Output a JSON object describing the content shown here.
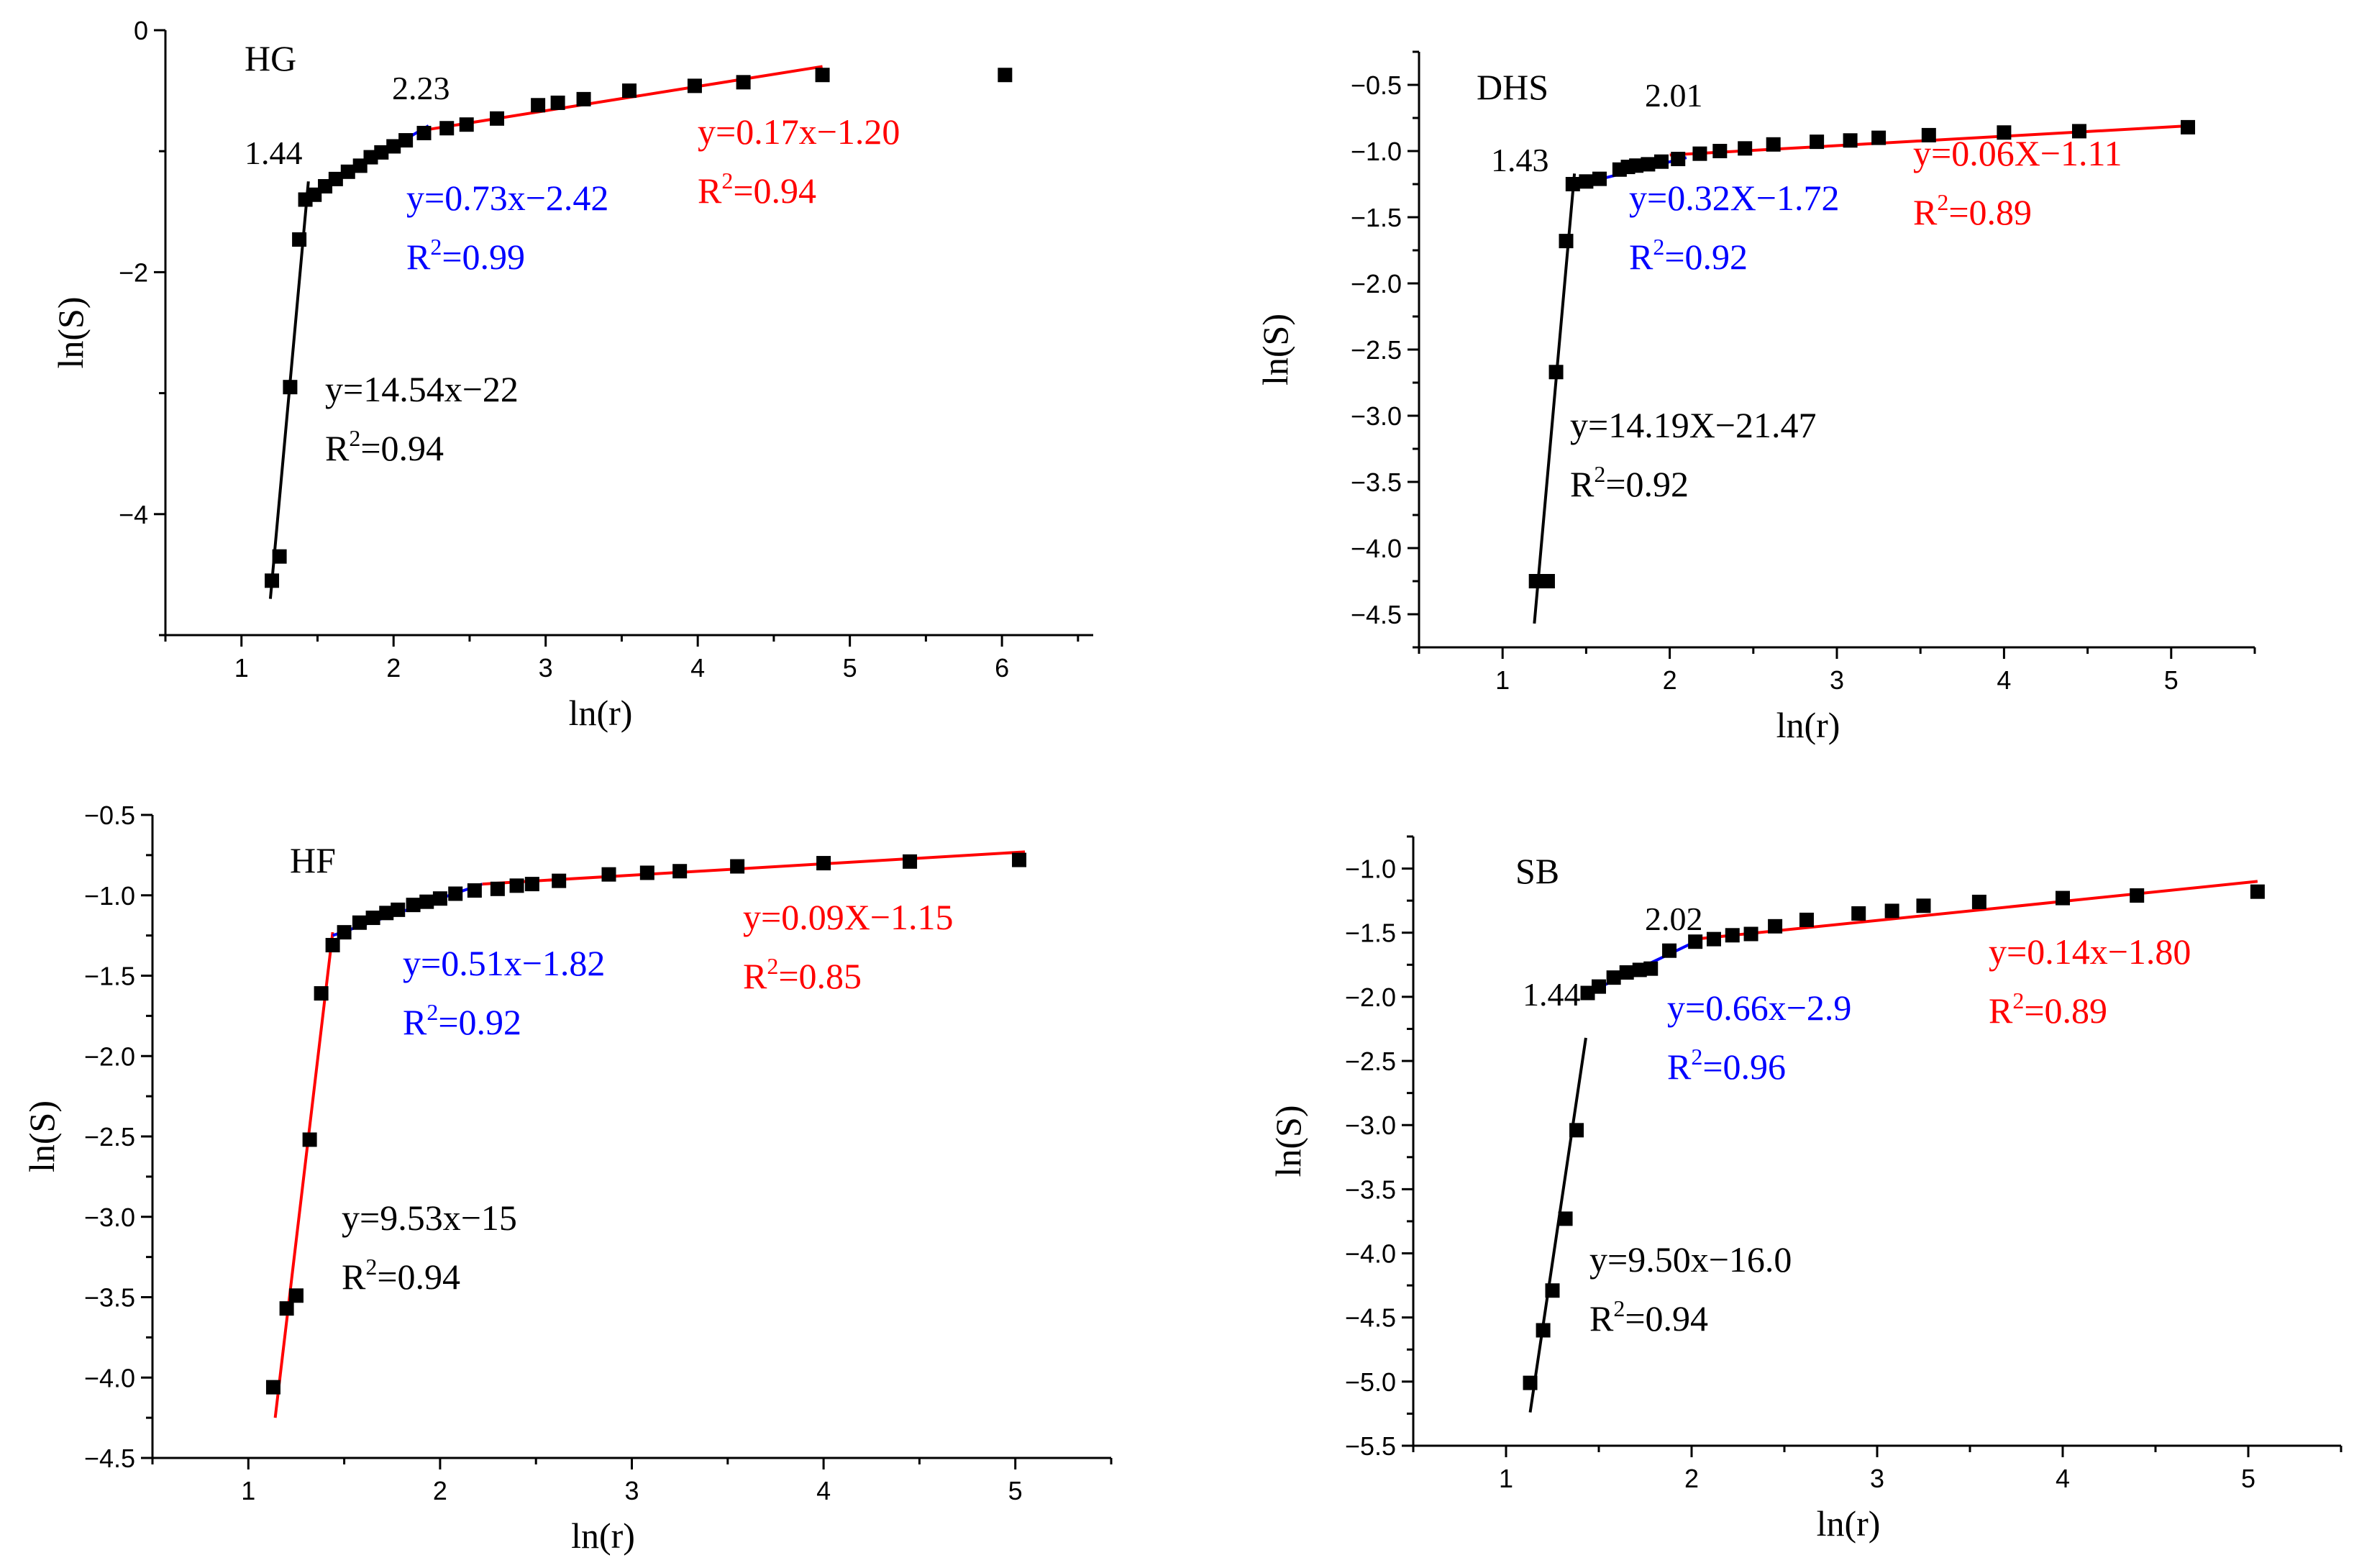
{
  "chart_data": [
    {
      "type": "scatter",
      "title": "HG",
      "xlabel": "ln(r)",
      "ylabel": "ln(S)",
      "xlim": [
        0.5,
        6.6
      ],
      "ylim": [
        -5.0,
        0.0
      ],
      "xticks": [
        1,
        2,
        3,
        4,
        5,
        6
      ],
      "yticks": [
        0,
        -2,
        -4
      ],
      "xtick_labels": [
        "1",
        "2",
        "3",
        "4",
        "5",
        "6"
      ],
      "ytick_labels": [
        "0",
        "−2",
        "−4"
      ],
      "points": {
        "x": [
          1.2,
          1.25,
          1.32,
          1.38,
          1.42,
          1.48,
          1.55,
          1.62,
          1.7,
          1.78,
          1.85,
          1.92,
          2.0,
          2.08,
          2.2,
          2.35,
          2.48,
          2.68,
          2.95,
          3.08,
          3.25,
          3.55,
          3.98,
          4.3,
          4.82,
          6.02
        ],
        "y": [
          -4.55,
          -4.35,
          -2.95,
          -1.73,
          -1.4,
          -1.36,
          -1.29,
          -1.23,
          -1.17,
          -1.12,
          -1.05,
          -1.01,
          -0.96,
          -0.91,
          -0.85,
          -0.81,
          -0.78,
          -0.73,
          -0.62,
          -0.6,
          -0.57,
          -0.5,
          -0.46,
          -0.43,
          -0.37,
          -0.37
        ]
      },
      "fits": [
        {
          "color": "#000000",
          "x": [
            1.19,
            1.44
          ],
          "y": [
            -4.7,
            -1.25
          ]
        },
        {
          "color": "#0000ff",
          "x": [
            1.44,
            2.23
          ],
          "y": [
            -1.37,
            -0.79
          ]
        },
        {
          "color": "#ff0000",
          "x": [
            2.23,
            4.82
          ],
          "y": [
            -0.82,
            -0.3
          ]
        }
      ],
      "annotations": [
        {
          "id": "black_eq",
          "color": "#000000",
          "line1": "y=14.54x−22",
          "r2": "=0.94"
        },
        {
          "id": "blue_eq",
          "color": "#0000ff",
          "line1": "y=0.73x−2.42",
          "r2": "=0.99"
        },
        {
          "id": "red_eq",
          "color": "#ff0000",
          "line1": "y=0.17x−1.20",
          "r2": "=0.94"
        }
      ],
      "breakpoints": [
        "1.44",
        "2.23"
      ]
    },
    {
      "type": "scatter",
      "title": "DHS",
      "xlabel": "ln(r)",
      "ylabel": "ln(S)",
      "xlim": [
        0.5,
        5.5
      ],
      "ylim": [
        -4.75,
        -0.25
      ],
      "xticks": [
        1,
        2,
        3,
        4,
        5
      ],
      "yticks": [
        -0.5,
        -1.0,
        -1.5,
        -2.0,
        -2.5,
        -3.0,
        -3.5,
        -4.0,
        -4.5
      ],
      "xtick_labels": [
        "1",
        "2",
        "3",
        "4",
        "5"
      ],
      "ytick_labels": [
        "−0.5",
        "−1.0",
        "−1.5",
        "−2.0",
        "−2.5",
        "−3.0",
        "−3.5",
        "−4.0",
        "−4.5"
      ],
      "points": {
        "x": [
          1.2,
          1.27,
          1.32,
          1.38,
          1.42,
          1.5,
          1.58,
          1.7,
          1.75,
          1.8,
          1.87,
          1.95,
          2.05,
          2.18,
          2.3,
          2.45,
          2.62,
          2.88,
          3.08,
          3.25,
          3.55,
          4.0,
          4.45,
          5.1
        ],
        "y": [
          -4.25,
          -4.25,
          -2.67,
          -1.68,
          -1.25,
          -1.23,
          -1.21,
          -1.14,
          -1.12,
          -1.11,
          -1.1,
          -1.08,
          -1.06,
          -1.02,
          -1.0,
          -0.98,
          -0.95,
          -0.93,
          -0.92,
          -0.9,
          -0.88,
          -0.86,
          -0.85,
          -0.82
        ]
      },
      "fits": [
        {
          "color": "#000000",
          "x": [
            1.19,
            1.43
          ],
          "y": [
            -4.57,
            -1.17
          ]
        },
        {
          "color": "#0000ff",
          "x": [
            1.43,
            2.1
          ],
          "y": [
            -1.26,
            -1.05
          ]
        },
        {
          "color": "#ff0000",
          "x": [
            2.0,
            5.1
          ],
          "y": [
            -1.03,
            -0.81
          ]
        }
      ],
      "annotations": [
        {
          "id": "black_eq",
          "color": "#000000",
          "line1": "y=14.19X−21.47",
          "r2": "=0.92"
        },
        {
          "id": "blue_eq",
          "color": "#0000ff",
          "line1": "y=0.32X−1.72",
          "r2": "=0.92"
        },
        {
          "id": "red_eq",
          "color": "#ff0000",
          "line1": "y=0.06X−1.11",
          "r2": "=0.89"
        }
      ],
      "breakpoints": [
        "1.43",
        "2.01"
      ]
    },
    {
      "type": "scatter",
      "title": "HF",
      "xlabel": "ln(r)",
      "ylabel": "ln(S)",
      "xlim": [
        0.5,
        5.5
      ],
      "ylim": [
        -4.5,
        -0.5
      ],
      "xticks": [
        1,
        2,
        3,
        4,
        5
      ],
      "yticks": [
        -0.5,
        -1.0,
        -1.5,
        -2.0,
        -2.5,
        -3.0,
        -3.5,
        -4.0,
        -4.5
      ],
      "xtick_labels": [
        "1",
        "2",
        "3",
        "4",
        "5"
      ],
      "ytick_labels": [
        "−0.5",
        "−1.0",
        "−1.5",
        "−2.0",
        "−2.5",
        "−3.0",
        "−3.5",
        "−4.0",
        "−4.5"
      ],
      "points": {
        "x": [
          1.13,
          1.2,
          1.25,
          1.32,
          1.38,
          1.44,
          1.5,
          1.58,
          1.65,
          1.72,
          1.78,
          1.86,
          1.93,
          2.0,
          2.08,
          2.18,
          2.3,
          2.4,
          2.48,
          2.62,
          2.88,
          3.08,
          3.25,
          3.55,
          4.0,
          4.45,
          5.02
        ],
        "y": [
          -4.06,
          -3.57,
          -3.49,
          -2.52,
          -1.61,
          -1.31,
          -1.23,
          -1.17,
          -1.14,
          -1.11,
          -1.09,
          -1.06,
          -1.04,
          -1.02,
          -0.99,
          -0.97,
          -0.96,
          -0.94,
          -0.93,
          -0.91,
          -0.87,
          -0.86,
          -0.85,
          -0.82,
          -0.8,
          -0.79,
          -0.78
        ]
      },
      "fits": [
        {
          "color": "#ff0000",
          "x": [
            1.14,
            1.44
          ],
          "y": [
            -4.25,
            -1.23
          ]
        },
        {
          "color": "#0000ff",
          "x": [
            1.44,
            2.22
          ],
          "y": [
            -1.25,
            -0.93
          ]
        },
        {
          "color": "#ff0000",
          "x": [
            2.22,
            5.05
          ],
          "y": [
            -0.93,
            -0.73
          ]
        }
      ],
      "annotations": [
        {
          "id": "black_eq",
          "color": "#000000",
          "line1": "y=9.53x−15",
          "r2": "=0.94"
        },
        {
          "id": "blue_eq",
          "color": "#0000ff",
          "line1": "y=0.51x−1.82",
          "r2": "=0.92"
        },
        {
          "id": "red_eq",
          "color": "#ff0000",
          "line1": "y=0.09X−1.15",
          "r2": "=0.85"
        }
      ],
      "breakpoints": []
    },
    {
      "type": "scatter",
      "title": "SB",
      "xlabel": "ln(r)",
      "ylabel": "ln(S)",
      "xlim": [
        0.5,
        5.5
      ],
      "ylim": [
        -5.5,
        -0.75
      ],
      "xticks": [
        1,
        2,
        3,
        4,
        5
      ],
      "yticks": [
        -1.0,
        -1.5,
        -2.0,
        -2.5,
        -3.0,
        -3.5,
        -4.0,
        -4.5,
        -5.0,
        -5.5
      ],
      "xtick_labels": [
        "1",
        "2",
        "3",
        "4",
        "5"
      ],
      "ytick_labels": [
        "−1.0",
        "−1.5",
        "−2.0",
        "−2.5",
        "−3.0",
        "−3.5",
        "−4.0",
        "−4.5",
        "−5.0",
        "−5.5"
      ],
      "points": {
        "x": [
          1.13,
          1.2,
          1.25,
          1.32,
          1.38,
          1.44,
          1.5,
          1.58,
          1.65,
          1.72,
          1.78,
          1.88,
          2.02,
          2.12,
          2.22,
          2.32,
          2.45,
          2.62,
          2.9,
          3.08,
          3.25,
          3.55,
          4.0,
          4.4,
          5.05
        ],
        "y": [
          -5.01,
          -4.6,
          -4.29,
          -3.73,
          -3.04,
          -1.97,
          -1.92,
          -1.85,
          -1.81,
          -1.79,
          -1.78,
          -1.64,
          -1.57,
          -1.55,
          -1.52,
          -1.51,
          -1.45,
          -1.4,
          -1.35,
          -1.33,
          -1.29,
          -1.26,
          -1.23,
          -1.21,
          -1.18
        ]
      },
      "fits": [
        {
          "color": "#000000",
          "x": [
            1.13,
            1.43
          ],
          "y": [
            -5.24,
            -2.32
          ]
        },
        {
          "color": "#0000ff",
          "x": [
            1.44,
            2.02
          ],
          "y": [
            -1.97,
            -1.57
          ]
        },
        {
          "color": "#ff0000",
          "x": [
            2.02,
            5.05
          ],
          "y": [
            -1.55,
            -1.1
          ]
        }
      ],
      "annotations": [
        {
          "id": "black_eq",
          "color": "#000000",
          "line1": "y=9.50x−16.0",
          "r2": "=0.94"
        },
        {
          "id": "blue_eq",
          "color": "#0000ff",
          "line1": "y=0.66x−2.9",
          "r2": "=0.96"
        },
        {
          "id": "red_eq",
          "color": "#ff0000",
          "line1": "y=0.14x−1.80",
          "r2": "=0.89"
        }
      ],
      "breakpoints": [
        "1.44",
        "2.02"
      ]
    }
  ]
}
